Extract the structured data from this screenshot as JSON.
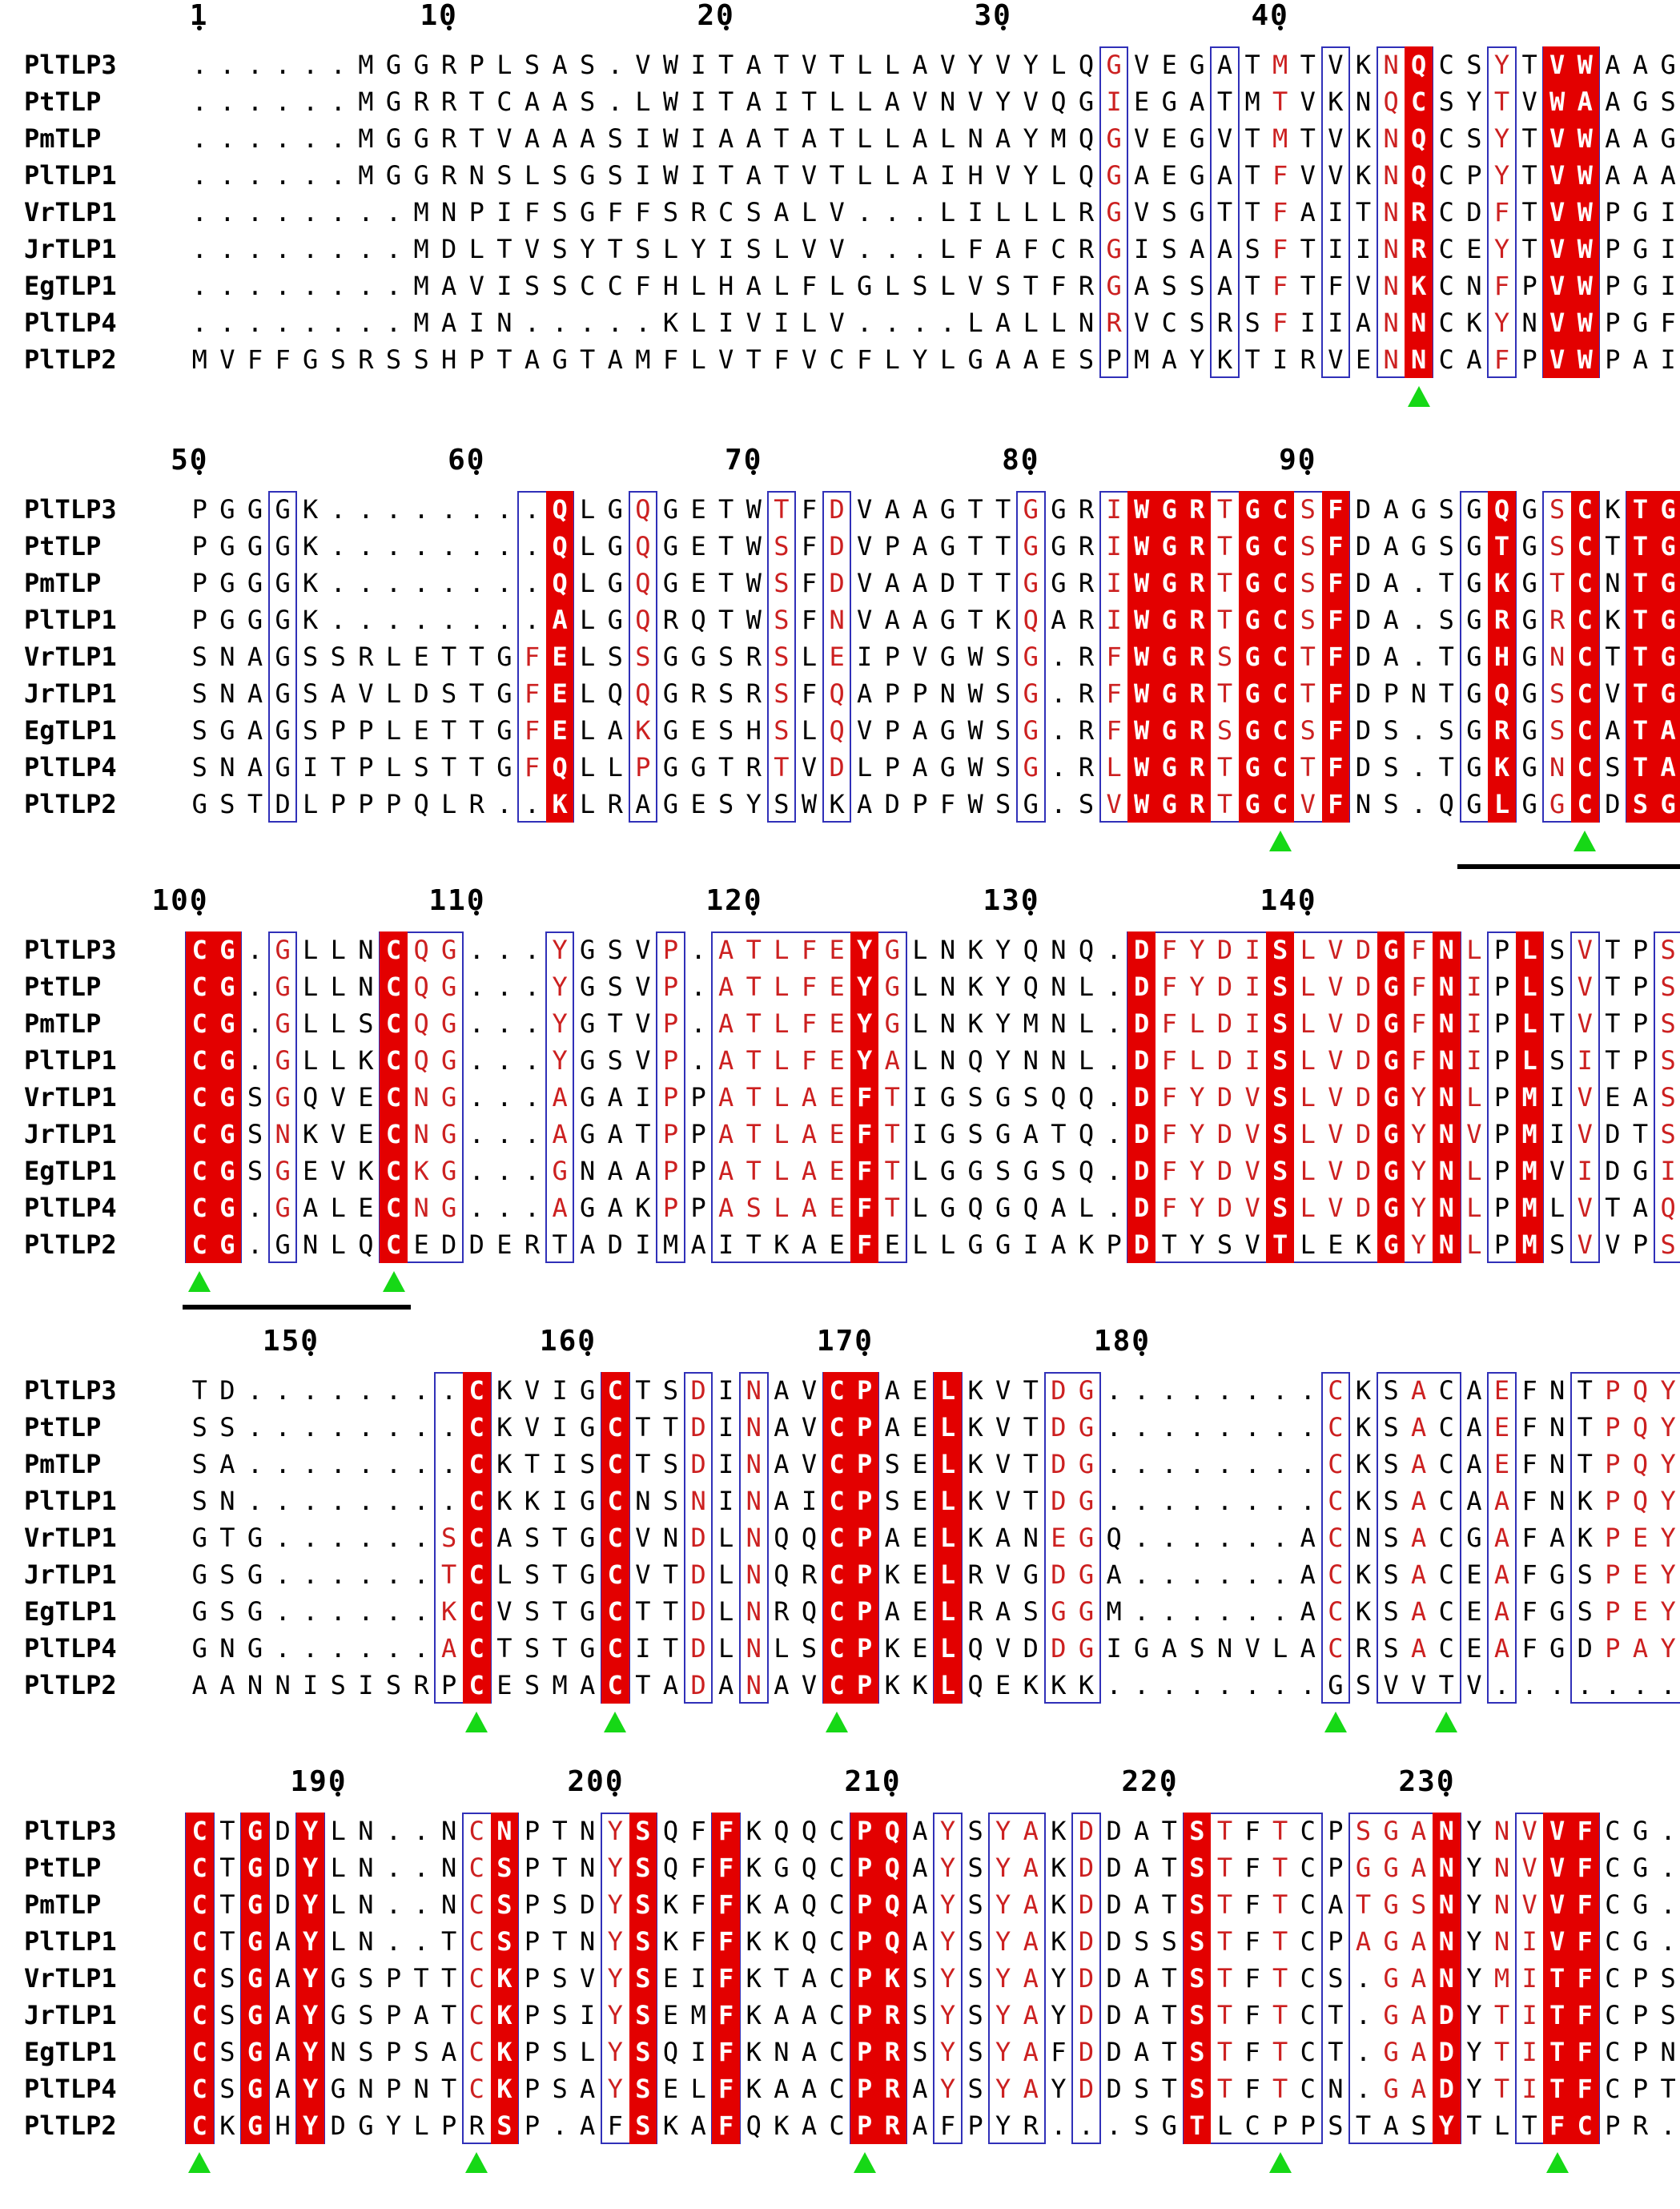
{
  "alignment": {
    "names": [
      "PlTLP3",
      "PtTLP",
      "PmTLP",
      "PlTLP1",
      "VrTLP1",
      "JrTLP1",
      "EgTLP1",
      "PlTLP4",
      "PlTLP2"
    ],
    "blocks": [
      {
        "start": 1,
        "ticks": [
          1,
          10,
          20,
          30,
          40
        ],
        "seqs": [
          "......MGGRPLSAS.VWITATVTLLAVYVYLQGVEGATMTVKNQCSYTVWAAGS",
          "......MGRRTCAAS.LWITAITLLAVNVYVQGIEGATMTVKNQCSYTVWAAGS",
          "......MGGRTVAAASIWIAATATLLALNAYMQGVEGVTMTVKNQCSYTVWAAGS",
          "......MGGRNSLSGSIWITATVTLLAIHVYLQGAEGATFVVKNQCPYTVWAAAS",
          "........MNPIFSGFFSRCSALV...LILLLRGVSGTTFAITNRCDFTVWPGIL",
          "........MDLTVSYTSLYISLVV...LFAFCRGISAASFTIINRCEYTVWPGIL",
          "........MAVISSCCFHLHALFLGLSLVSTFRGASSATFTFVNKCNFPVWPGIL",
          "........MAIN.....KLIVILV....LALLNRVCSRSFIIANNCKYNVWPGFL",
          "MVFFGSRSSHPTAGTAMFLVTFVCFLYLGAAESPMAYKTIRVENNCAFPVWPAIV"
        ],
        "identical": [
          [
            45,
            1,
            9
          ],
          [
            50,
            1,
            9
          ],
          [
            51,
            1,
            9
          ]
        ],
        "similar": [
          [
            34,
            1,
            8
          ],
          [
            40,
            1,
            8
          ],
          [
            44,
            1,
            9
          ],
          [
            48,
            1,
            9
          ]
        ],
        "frames": [
          [
            34,
            34,
            1,
            9
          ],
          [
            38,
            38,
            1,
            9
          ],
          [
            42,
            42,
            1,
            9
          ],
          [
            44,
            45,
            1,
            9
          ],
          [
            48,
            48,
            1,
            9
          ],
          [
            50,
            51,
            1,
            9
          ]
        ],
        "markers": [
          45
        ],
        "underlines": []
      },
      {
        "start": 50,
        "ticks": [
          50,
          60,
          70,
          80,
          90
        ],
        "seqs": [
          "PGGGK........QLGQGETWTFDVAAGTTGGRIWGRTGCSFDAGSGQGSCKTGD",
          "PGGGK........QLGQGETWSFDVPAGTTGGRIWGRTGCSFDAGSGTGSCTTGD",
          "PGGGK........QLGQGETWSFDVAADTTGGRIWGRTGCSFDA.TGKGTCNTGD",
          "PGGGK........ALGQRQTWSFNVAAGTKQARIWGRTGCSFDA.SGRGRCKTGD",
          "SNAGSSRLETTGFELSSGGSRSLEIPVGWSG.RFWGRSGCTFDA.TGHGNCTTGD",
          "SNAGSAVLDSTGFELQQGRSRSFQAPPNWSG.RFWGRTGCTFDPNTGQGSCVTGD",
          "SGAGSPPLETTGFELAKGESHSLQVPAGWSG.RFWGRSGCSFDS.SGRGSCATAD",
          "SNAGITPLSTTGFQLLPGGTRTVDLPAGWSG.RLWGRTGCTFDS.TGKGNCSTAD",
          "GSTDLPPPQLR..KLRAGESYSWKADPFWSG.SVWGRTGCVFNS.QGLGGCDSGD"
        ],
        "identical": [
          [
            14,
            1,
            9
          ],
          [
            35,
            1,
            9
          ],
          [
            36,
            1,
            9
          ],
          [
            37,
            1,
            9
          ],
          [
            39,
            1,
            9
          ],
          [
            40,
            1,
            9
          ],
          [
            42,
            1,
            9
          ],
          [
            48,
            1,
            9
          ],
          [
            51,
            1,
            9
          ],
          [
            53,
            1,
            9
          ],
          [
            54,
            1,
            9
          ]
        ],
        "similar": [
          [
            13,
            1,
            8
          ],
          [
            17,
            1,
            8
          ],
          [
            22,
            1,
            8
          ],
          [
            24,
            1,
            8
          ],
          [
            31,
            1,
            8
          ],
          [
            34,
            1,
            9
          ],
          [
            38,
            1,
            9
          ],
          [
            41,
            1,
            9
          ],
          [
            50,
            1,
            9
          ]
        ],
        "frames": [
          [
            4,
            4,
            1,
            9
          ],
          [
            13,
            14,
            1,
            9
          ],
          [
            17,
            17,
            1,
            9
          ],
          [
            22,
            22,
            1,
            9
          ],
          [
            24,
            24,
            1,
            9
          ],
          [
            31,
            31,
            1,
            9
          ],
          [
            34,
            42,
            1,
            9
          ],
          [
            47,
            48,
            1,
            9
          ],
          [
            50,
            51,
            1,
            9
          ],
          [
            53,
            54,
            1,
            9
          ]
        ],
        "markers": [
          40,
          51
        ],
        "underlines": [
          [
            47,
            54
          ]
        ]
      },
      {
        "start": 100,
        "ticks": [
          100,
          110,
          120,
          130,
          140
        ],
        "seqs": [
          "CG.GLLNCQG...YGSVP.ATLFEYGLNKYQNQ.DFYDISLVDGFNLPLSVTPSN",
          "CG.GLLNCQG...YGSVP.ATLFEYGLNKYQNL.DFYDISLVDGFNIPLSVTPSD",
          "CG.GLLSCQG...YGTVP.ATLFEYGLNKYMNL.DFLDISLVDGFNIPLTVTPSN",
          "CG.GLLKCQG...YGSVP.ATLFEYALNQYNNL.DFLDISLVDGFNIPLSITPSN",
          "CGSGQVECNG...AGAIPPATLAEFTIGSGSQQ.DFYDVSLVDGYNLPMIVEASG",
          "CGSNKVECNG...AGATPPATLAEFTIGSGATQ.DFYDVSLVDGYNVPMIVDTSG",
          "CGSGEVKCKG...GNAAPPATLAEFTLGGSGSQ.DFYDVSLVDGYNLPMVIDGIG",
          "CG.GALECNG...AGAKPPASLAEFTLGQGQAL.DFYDVSLVDGYNLPMLVTAQG",
          "CG.GNLQCEDDERTADIMAITKAEFELLGGIAKPDTYSVTLEKGYNLPMSVVPSY"
        ],
        "identical": [
          [
            1,
            1,
            9
          ],
          [
            2,
            1,
            9
          ],
          [
            8,
            1,
            9
          ],
          [
            25,
            1,
            9
          ],
          [
            35,
            1,
            9
          ],
          [
            40,
            1,
            9
          ],
          [
            44,
            1,
            9
          ],
          [
            46,
            1,
            9
          ],
          [
            49,
            1,
            9
          ]
        ],
        "similar": [
          [
            4,
            1,
            8
          ],
          [
            9,
            1,
            8
          ],
          [
            10,
            1,
            8
          ],
          [
            14,
            1,
            8
          ],
          [
            18,
            1,
            8
          ],
          [
            20,
            1,
            8
          ],
          [
            21,
            1,
            8
          ],
          [
            22,
            1,
            8
          ],
          [
            23,
            1,
            8
          ],
          [
            24,
            1,
            8
          ],
          [
            26,
            1,
            8
          ],
          [
            36,
            1,
            8
          ],
          [
            37,
            1,
            8
          ],
          [
            38,
            1,
            8
          ],
          [
            39,
            1,
            8
          ],
          [
            41,
            1,
            8
          ],
          [
            42,
            1,
            8
          ],
          [
            43,
            1,
            8
          ],
          [
            45,
            1,
            9
          ],
          [
            47,
            1,
            9
          ],
          [
            51,
            1,
            9
          ],
          [
            54,
            1,
            9
          ]
        ],
        "frames": [
          [
            1,
            2,
            1,
            9
          ],
          [
            4,
            4,
            1,
            9
          ],
          [
            8,
            10,
            1,
            9
          ],
          [
            14,
            14,
            1,
            9
          ],
          [
            18,
            18,
            1,
            9
          ],
          [
            20,
            26,
            1,
            9
          ],
          [
            35,
            46,
            1,
            9
          ],
          [
            48,
            49,
            1,
            9
          ],
          [
            51,
            51,
            1,
            9
          ],
          [
            54,
            54,
            1,
            9
          ]
        ],
        "markers": [
          1,
          8
        ],
        "underlines": [
          [
            1,
            8
          ]
        ]
      },
      {
        "start": 146,
        "ticks": [
          150,
          160,
          170,
          180
        ],
        "seqs": [
          "TD........CKVIGCTSDINAVCPAELKVTDG........CKSACAEFNTPQYC",
          "SS........CKVIGCTTDINAVCPAELKVTDG........CKSACAEFNTPQYC",
          "SA........CKTISCTSDINAVCPSELKVTDG........CKSACAEFNTPQYC",
          "SN........CKKIGCNSNINAICPSELKVTDG........CKSACAAFNKPQYC",
          "GTG......SCASTGCVNDLNQQCPAELKANEGQ......ACNSACGAFAKPEYC",
          "GSG......TCLSTGCVTDLNQRCPKELRVGDGA......ACKSACEAFGSPEYC",
          "GSG......KCVSTGCTTDLNRQCPAELRASGGM......ACKSACEAFGSPEYC",
          "GNG......ACTSTGCITDLNLSCPKELQVDDGIGASNVLACRSACEAFGDPAYC",
          "AANNISISRPCESMACTADANAVCPKKLQEKKK........GSVVTV......."
        ],
        "identical": [
          [
            11,
            1,
            9
          ],
          [
            16,
            1,
            9
          ],
          [
            24,
            1,
            9
          ],
          [
            25,
            1,
            9
          ],
          [
            28,
            1,
            9
          ]
        ],
        "similar": [
          [
            10,
            1,
            8
          ],
          [
            19,
            1,
            9
          ],
          [
            21,
            1,
            9
          ],
          [
            32,
            1,
            8
          ],
          [
            33,
            1,
            8
          ],
          [
            42,
            1,
            8
          ],
          [
            45,
            1,
            8
          ],
          [
            48,
            1,
            8
          ],
          [
            52,
            1,
            8
          ],
          [
            53,
            1,
            8
          ],
          [
            54,
            1,
            8
          ],
          [
            55,
            1,
            8
          ]
        ],
        "frames": [
          [
            10,
            11,
            1,
            9
          ],
          [
            16,
            16,
            1,
            9
          ],
          [
            19,
            19,
            1,
            9
          ],
          [
            21,
            21,
            1,
            9
          ],
          [
            24,
            25,
            1,
            9
          ],
          [
            28,
            28,
            1,
            9
          ],
          [
            32,
            33,
            1,
            9
          ],
          [
            42,
            42,
            1,
            9
          ],
          [
            44,
            46,
            1,
            9
          ],
          [
            48,
            48,
            1,
            9
          ],
          [
            51,
            55,
            1,
            9
          ]
        ],
        "markers": [
          11,
          16,
          24,
          42,
          46,
          55
        ],
        "underlines": []
      },
      {
        "start": 185,
        "ticks": [
          190,
          200,
          210,
          220,
          230
        ],
        "seqs": [
          "CTGDYLN..NCNPTNYSQFFKQQCPQAYSYAKDDATSTFTCPSGANYNVVFCG..",
          "CTGDYLN..NCSPTNYSQFFKGQCPQAYSYAKDDATSTFTCPGGANYNVVFCG..",
          "CTGDYLN..NCSPSDYSKFFKAQCPQAYSYAKDDATSTFTCATGSNYNVVFCG..",
          "CTGAYLN..TCSPTNYSKFFKKQCPQAYSYAKDDSSSTFTCPAGANYNIVFCG..",
          "CSGAYGSPTTCKPSVYSEIFKTACPKSYSYAYDDATSTFTCS.GANYMITFCPSL",
          "CSGAYGSPATCKPSIYSEMFKAACPRSYSYAYDDATSTFTCT.GADYTITFCPSG",
          "CSGAYNSPSACKPSLYSQIFKNACPRSYSYAFDDATSTFTCT.GADYTITFCPNS",
          "CSGAYGNPNTCKPSAYSELFKAACPRAYSYAYDDSTSTFTCN.GADYTITFCPTL",
          "CKGHYDGYLPRSP.AFSKAFQKACPRAFPYR...SGTLCPPSTASYTLTFCPR."
        ],
        "identical": [
          [
            1,
            1,
            9
          ],
          [
            3,
            1,
            9
          ],
          [
            5,
            1,
            9
          ],
          [
            12,
            1,
            9
          ],
          [
            17,
            1,
            9
          ],
          [
            20,
            1,
            9
          ],
          [
            25,
            1,
            9
          ],
          [
            26,
            1,
            9
          ],
          [
            37,
            1,
            9
          ],
          [
            46,
            1,
            9
          ],
          [
            50,
            1,
            9
          ],
          [
            51,
            1,
            9
          ]
        ],
        "similar": [
          [
            11,
            1,
            8
          ],
          [
            16,
            1,
            8
          ],
          [
            26,
            1,
            8
          ],
          [
            28,
            1,
            8
          ],
          [
            30,
            1,
            8
          ],
          [
            31,
            1,
            8
          ],
          [
            33,
            1,
            8
          ],
          [
            38,
            1,
            8
          ],
          [
            40,
            1,
            8
          ],
          [
            43,
            1,
            8
          ],
          [
            44,
            1,
            8
          ],
          [
            45,
            1,
            8
          ],
          [
            48,
            1,
            8
          ],
          [
            49,
            1,
            8
          ]
        ],
        "frames": [
          [
            1,
            1,
            1,
            9
          ],
          [
            3,
            3,
            1,
            9
          ],
          [
            5,
            5,
            1,
            9
          ],
          [
            11,
            12,
            1,
            9
          ],
          [
            16,
            17,
            1,
            9
          ],
          [
            20,
            20,
            1,
            9
          ],
          [
            25,
            26,
            1,
            9
          ],
          [
            28,
            28,
            1,
            9
          ],
          [
            30,
            31,
            1,
            9
          ],
          [
            33,
            33,
            1,
            9
          ],
          [
            37,
            41,
            1,
            9
          ],
          [
            43,
            46,
            1,
            9
          ],
          [
            49,
            51,
            1,
            9
          ]
        ],
        "markers": [
          1,
          11,
          25,
          40,
          50
        ],
        "underlines": []
      }
    ]
  },
  "colors": {
    "identical_bg": "#e30000",
    "identical_fg": "#ffffff",
    "similar_fg": "#cc2020",
    "frame": "#3030b8",
    "marker": "#16d816"
  }
}
